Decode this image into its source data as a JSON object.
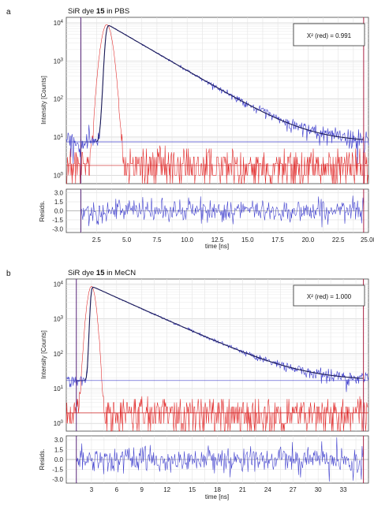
{
  "chart_data": [
    {
      "panel": "a",
      "type": "line",
      "title_prefix": "SiR dye ",
      "title_bold": "15",
      "title_suffix": " in PBS",
      "xlabel": "time [ns]",
      "ylabel": "Intensity [Counts]",
      "residual_ylabel": "Resids.",
      "annotation": "X² (red) = 0.991",
      "xlim": [
        0,
        25
      ],
      "ylim": [
        0.6,
        14000
      ],
      "yscale": "log",
      "xticks": [
        "2.5",
        "5.0",
        "7.5",
        "10.0",
        "12.5",
        "15.0",
        "17.5",
        "20.0",
        "22.5",
        "25.00"
      ],
      "yticks": [
        "10^0",
        "10^1",
        "10^2",
        "10^3",
        "10^4"
      ],
      "residual_yticks": [
        "3.0",
        "1.5",
        "0.0",
        "-1.5",
        "-3.0"
      ],
      "residual_ylim": [
        -3.6,
        3.6
      ],
      "grid": true,
      "decay": {
        "peak_time": 3.45,
        "peak_counts": 9000,
        "lifetime": 2.35,
        "baseline": 7.5,
        "cursor_start": 1.2,
        "cursor_end": 24.6
      },
      "irf": {
        "peak_time": 3.35,
        "peak_counts": 9000,
        "width": 0.32,
        "noise_floor": 1.8
      },
      "series": [
        {
          "role": "decay-data",
          "color": "#3a3acc"
        },
        {
          "role": "fit",
          "color": "#1a1a55"
        },
        {
          "role": "irf",
          "color": "#e02020"
        },
        {
          "role": "residuals",
          "color": "#3a3acc"
        }
      ]
    },
    {
      "panel": "b",
      "type": "line",
      "title_prefix": "SiR dye ",
      "title_bold": "15",
      "title_suffix": " in MeCN",
      "xlabel": "time [ns]",
      "ylabel": "Intensity [Counts]",
      "residual_ylabel": "Resids.",
      "annotation": "X² (red) = 1.000",
      "xlim": [
        0,
        36
      ],
      "ylim": [
        0.6,
        14000
      ],
      "yscale": "log",
      "xticks": [
        "3",
        "6",
        "9",
        "12",
        "15",
        "18",
        "21",
        "24",
        "27",
        "30",
        "33"
      ],
      "yticks": [
        "10^0",
        "10^1",
        "10^2",
        "10^3",
        "10^4"
      ],
      "residual_yticks": [
        "3.0",
        "1.5",
        "0.0",
        "-1.5",
        "-3.0"
      ],
      "residual_ylim": [
        -3.6,
        3.6
      ],
      "grid": true,
      "decay": {
        "peak_time": 3.1,
        "peak_counts": 8500,
        "lifetime": 4.0,
        "baseline": 17,
        "cursor_start": 1.2,
        "cursor_end": 35.4
      },
      "irf": {
        "peak_time": 3.0,
        "peak_counts": 8500,
        "width": 0.35,
        "noise_floor": 2.0
      },
      "series": [
        {
          "role": "decay-data",
          "color": "#3a3acc"
        },
        {
          "role": "fit",
          "color": "#1a1a55"
        },
        {
          "role": "irf",
          "color": "#e02020"
        },
        {
          "role": "residuals",
          "color": "#3a3acc"
        }
      ]
    }
  ]
}
